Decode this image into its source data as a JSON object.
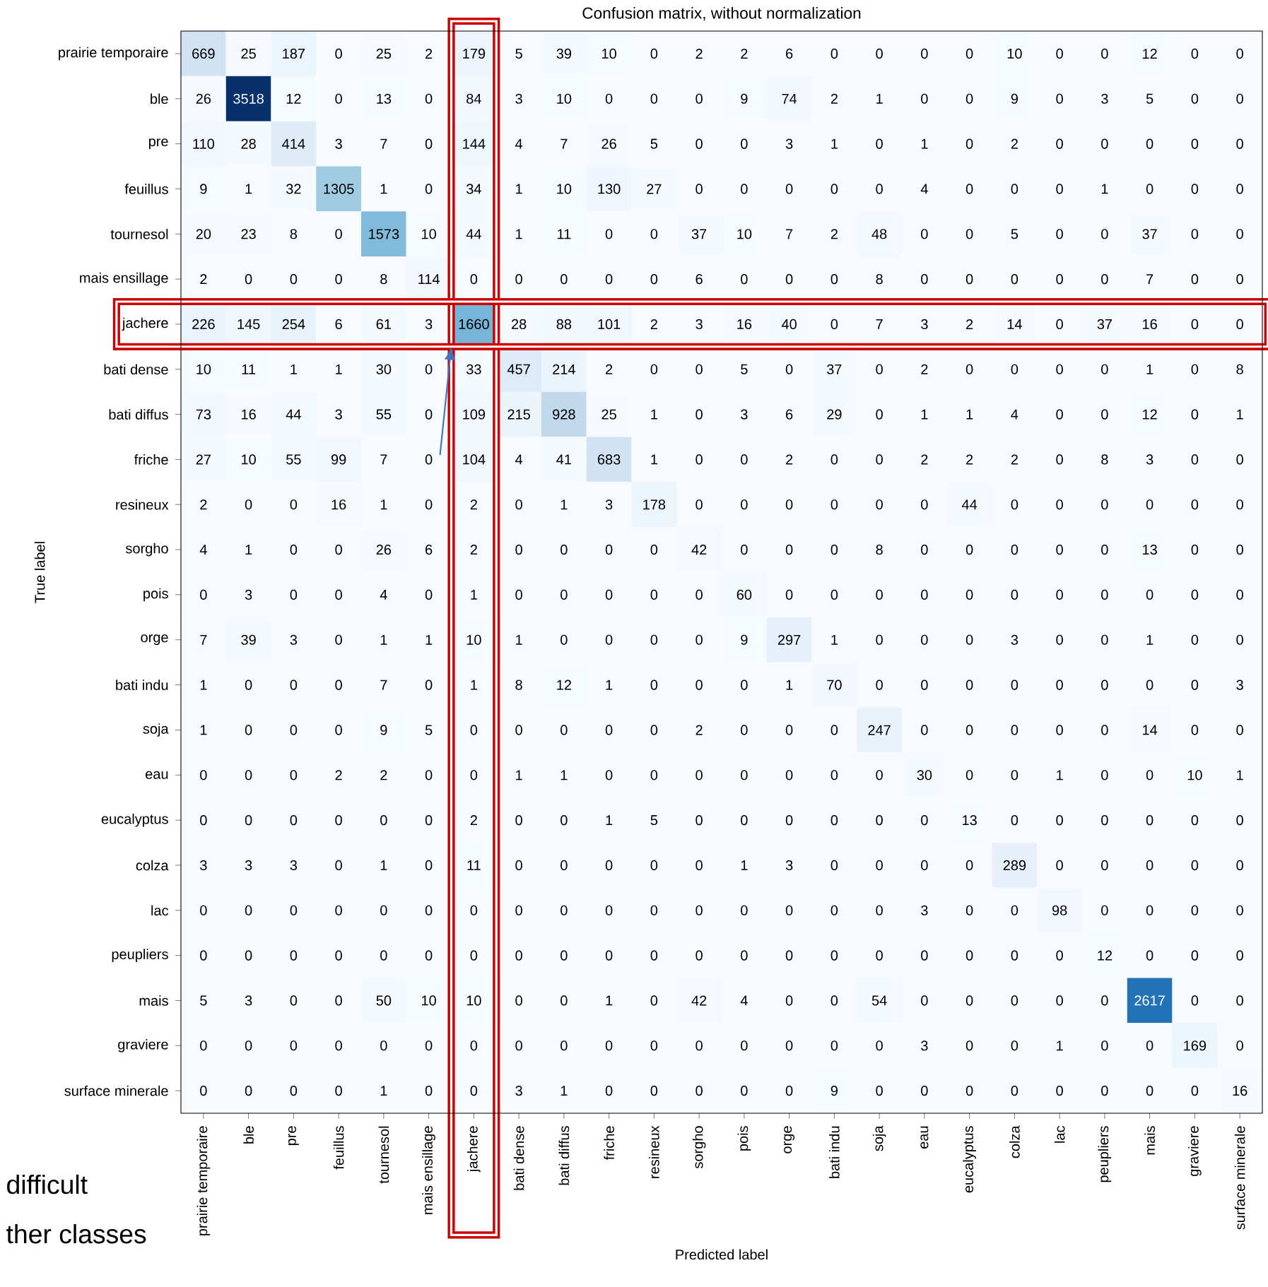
{
  "chart_data": {
    "type": "heatmap",
    "title": "Confusion matrix, without normalization",
    "xlabel": "Predicted label",
    "ylabel": "True label",
    "categories": [
      "prairie temporaire",
      "ble",
      "pre",
      "feuillus",
      "tournesol",
      "mais ensillage",
      "jachere",
      "bati dense",
      "bati diffus",
      "friche",
      "resineux",
      "sorgho",
      "pois",
      "orge",
      "bati indu",
      "soja",
      "eau",
      "eucalyptus",
      "colza",
      "lac",
      "peupliers",
      "mais",
      "graviere",
      "surface minerale"
    ],
    "y_categories": [
      "prairie temporaire",
      "ble",
      "pre",
      "feuillus",
      "tournesol",
      "mais ensillage",
      "jachere",
      "bati dense",
      "bati diffus",
      "friche",
      "resineux",
      "sorgho",
      "pois",
      "orge",
      "bati indu",
      "soja",
      "eau",
      "eucalyptus",
      "colza",
      "lac",
      "peupliers",
      "mais",
      "graviere",
      "surface minerale"
    ],
    "cells": [
      [
        669,
        25,
        187,
        0,
        25,
        2,
        179,
        5,
        39,
        10,
        0,
        2,
        2,
        6,
        0,
        0,
        0,
        0,
        10,
        0,
        0,
        12,
        0,
        0
      ],
      [
        26,
        3518,
        12,
        0,
        13,
        0,
        84,
        3,
        10,
        0,
        0,
        0,
        9,
        74,
        2,
        1,
        0,
        0,
        9,
        0,
        3,
        5,
        0,
        0
      ],
      [
        110,
        28,
        414,
        3,
        7,
        0,
        144,
        4,
        7,
        26,
        5,
        0,
        0,
        3,
        1,
        0,
        1,
        0,
        2,
        0,
        0,
        0,
        0,
        0
      ],
      [
        9,
        1,
        32,
        1305,
        1,
        0,
        34,
        1,
        10,
        130,
        27,
        0,
        0,
        0,
        0,
        0,
        4,
        0,
        0,
        0,
        1,
        0,
        0,
        0
      ],
      [
        20,
        23,
        8,
        0,
        1573,
        10,
        44,
        1,
        11,
        0,
        0,
        37,
        10,
        7,
        2,
        48,
        0,
        0,
        5,
        0,
        0,
        37,
        0,
        0
      ],
      [
        2,
        0,
        0,
        0,
        8,
        114,
        0,
        0,
        0,
        0,
        0,
        6,
        0,
        0,
        0,
        8,
        0,
        0,
        0,
        0,
        0,
        7,
        0,
        0
      ],
      [
        226,
        145,
        254,
        6,
        61,
        3,
        1660,
        28,
        88,
        101,
        2,
        3,
        16,
        40,
        0,
        7,
        3,
        2,
        14,
        0,
        37,
        16,
        0,
        0
      ],
      [
        10,
        11,
        1,
        1,
        30,
        0,
        33,
        457,
        214,
        2,
        0,
        0,
        5,
        0,
        37,
        0,
        2,
        0,
        0,
        0,
        0,
        1,
        0,
        8
      ],
      [
        73,
        16,
        44,
        3,
        55,
        0,
        109,
        215,
        928,
        25,
        1,
        0,
        3,
        6,
        29,
        0,
        1,
        1,
        4,
        0,
        0,
        12,
        0,
        1
      ],
      [
        27,
        10,
        55,
        99,
        7,
        0,
        104,
        4,
        41,
        683,
        1,
        0,
        0,
        2,
        0,
        0,
        2,
        2,
        2,
        0,
        8,
        3,
        0,
        0
      ],
      [
        2,
        0,
        0,
        16,
        1,
        0,
        2,
        0,
        1,
        3,
        178,
        0,
        0,
        0,
        0,
        0,
        0,
        44,
        0,
        0,
        0,
        0,
        0,
        0
      ],
      [
        4,
        1,
        0,
        0,
        26,
        6,
        2,
        0,
        0,
        0,
        0,
        42,
        0,
        0,
        0,
        8,
        0,
        0,
        0,
        0,
        0,
        13,
        0,
        0
      ],
      [
        0,
        3,
        0,
        0,
        4,
        0,
        1,
        0,
        0,
        0,
        0,
        0,
        60,
        0,
        0,
        0,
        0,
        0,
        0,
        0,
        0,
        0,
        0,
        0
      ],
      [
        7,
        39,
        3,
        0,
        1,
        1,
        10,
        1,
        0,
        0,
        0,
        0,
        9,
        297,
        1,
        0,
        0,
        0,
        3,
        0,
        0,
        1,
        0,
        0
      ],
      [
        1,
        0,
        0,
        0,
        7,
        0,
        1,
        8,
        12,
        1,
        0,
        0,
        0,
        1,
        70,
        0,
        0,
        0,
        0,
        0,
        0,
        0,
        0,
        3
      ],
      [
        1,
        0,
        0,
        0,
        9,
        5,
        0,
        0,
        0,
        0,
        0,
        2,
        0,
        0,
        0,
        247,
        0,
        0,
        0,
        0,
        0,
        14,
        0,
        0
      ],
      [
        0,
        0,
        0,
        2,
        2,
        0,
        0,
        1,
        1,
        0,
        0,
        0,
        0,
        0,
        0,
        0,
        30,
        0,
        0,
        1,
        0,
        0,
        10,
        1
      ],
      [
        0,
        0,
        0,
        0,
        0,
        0,
        2,
        0,
        0,
        1,
        5,
        0,
        0,
        0,
        0,
        0,
        0,
        13,
        0,
        0,
        0,
        0,
        0,
        0
      ],
      [
        3,
        3,
        3,
        0,
        1,
        0,
        11,
        0,
        0,
        0,
        0,
        0,
        1,
        3,
        0,
        0,
        0,
        0,
        289,
        0,
        0,
        0,
        0,
        0
      ],
      [
        0,
        0,
        0,
        0,
        0,
        0,
        0,
        0,
        0,
        0,
        0,
        0,
        0,
        0,
        0,
        0,
        3,
        0,
        0,
        98,
        0,
        0,
        0,
        0
      ],
      [
        0,
        0,
        0,
        0,
        0,
        0,
        0,
        0,
        0,
        0,
        0,
        0,
        0,
        0,
        0,
        0,
        0,
        0,
        0,
        0,
        12,
        0,
        0,
        0
      ],
      [
        5,
        3,
        0,
        0,
        50,
        10,
        10,
        0,
        0,
        1,
        0,
        42,
        4,
        0,
        0,
        54,
        0,
        0,
        0,
        0,
        0,
        2617,
        0,
        0
      ],
      [
        0,
        0,
        0,
        0,
        0,
        0,
        0,
        0,
        0,
        0,
        0,
        0,
        0,
        0,
        0,
        0,
        3,
        0,
        0,
        1,
        0,
        0,
        169,
        0
      ],
      [
        0,
        0,
        0,
        0,
        1,
        0,
        0,
        3,
        1,
        0,
        0,
        0,
        0,
        0,
        9,
        0,
        0,
        0,
        0,
        0,
        0,
        0,
        0,
        16
      ]
    ],
    "data_labels": true,
    "annotations": [
      "difficult",
      "ther classes"
    ]
  }
}
